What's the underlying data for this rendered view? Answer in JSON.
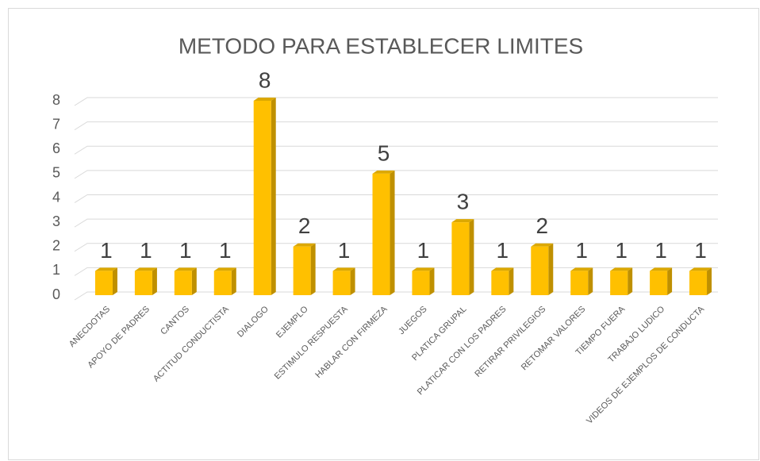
{
  "chart_data": {
    "type": "bar",
    "title": "METODO PARA ESTABLECER LIMITES",
    "categories": [
      "ANECDOTAS",
      "APOYO DE PADRES",
      "CANTOS",
      "ACTITUD CONDUCTISTA",
      "DIALOGO",
      "EJEMPLO",
      "ESTIMULO RESPUESTA",
      "HABLAR CON FIRMEZA",
      "JUEGOS",
      "PLATICA GRUPAL",
      "PLATICAR CON LOS PADRES",
      "RETIRAR PRIVILEGIOS",
      "RETOMAR VALORES",
      "TIEMPO FUERA",
      "TRABAJO LUDICO",
      "VIDEOS DE EJEMPLOS DE CONDUCTA"
    ],
    "values": [
      1,
      1,
      1,
      1,
      8,
      2,
      1,
      5,
      1,
      3,
      1,
      2,
      1,
      1,
      1,
      1
    ],
    "color": "#ffc000",
    "ylim": [
      0,
      8
    ],
    "yticks": [
      0,
      1,
      2,
      3,
      4,
      5,
      6,
      7,
      8
    ],
    "grid": true
  }
}
